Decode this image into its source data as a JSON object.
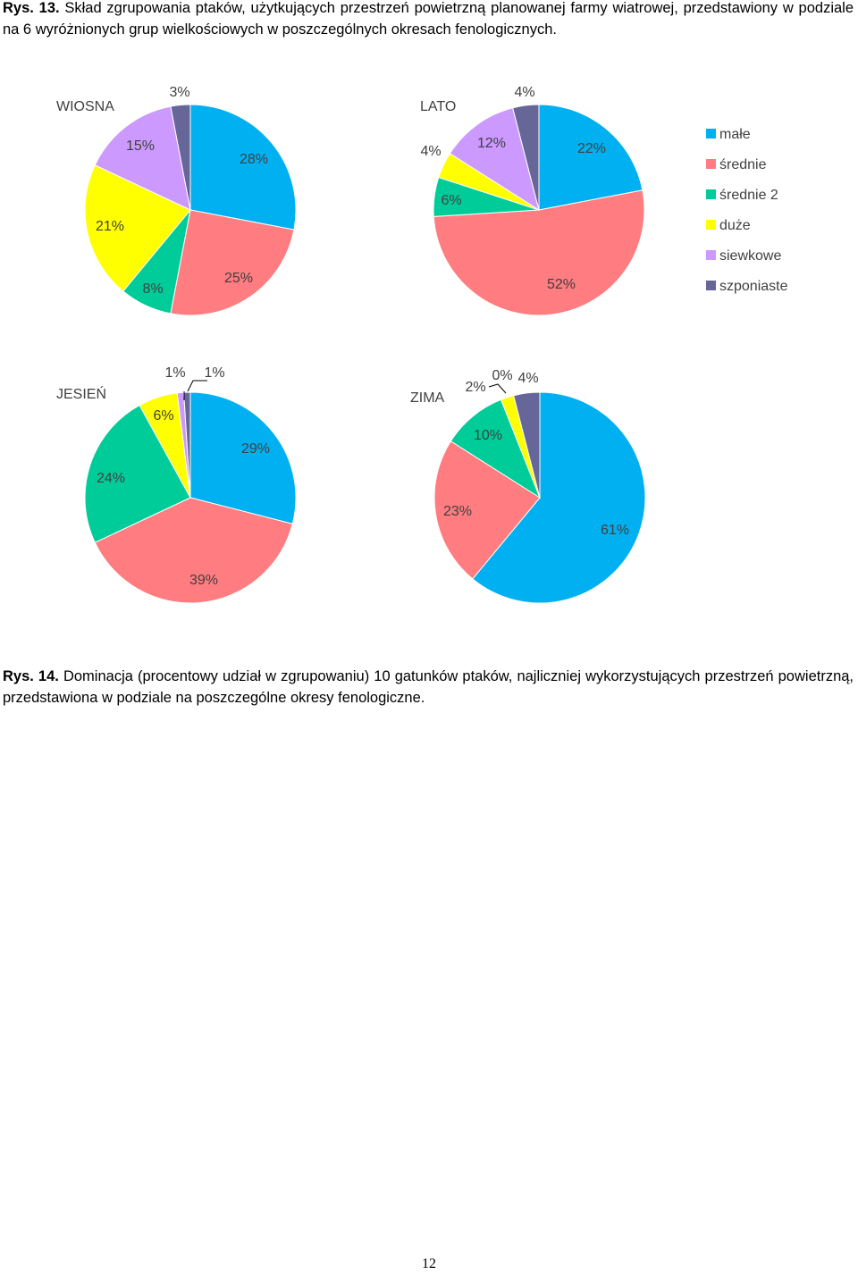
{
  "figure13": {
    "label": "Rys. 13.",
    "caption": "Skład zgrupowania ptaków, użytkujących przestrzeń powietrzną planowanej farmy wiatrowej, przedstawiony w podziale na 6 wyróżnionych grup wielkościowych w poszczególnych okresach fenologicznych."
  },
  "figure14": {
    "label": "Rys. 14.",
    "caption": "Dominacja (procentowy udział w zgrupowaniu) 10 gatunków ptaków, najliczniej wykorzystujących przestrzeń powietrzną, przedstawiona w podziale na poszczególne okresy fenologiczne."
  },
  "page_number": "12",
  "chart_data": [
    {
      "type": "pie",
      "title": "WIOSNA",
      "categories": [
        "małe",
        "średnie",
        "średnie 2",
        "duże",
        "siewkowe",
        "szponiaste"
      ],
      "values": [
        28,
        25,
        8,
        21,
        15,
        3
      ],
      "labels": [
        "28%",
        "25%",
        "8%",
        "21%",
        "15%",
        "3%"
      ]
    },
    {
      "type": "pie",
      "title": "LATO",
      "categories": [
        "małe",
        "średnie",
        "średnie 2",
        "duże",
        "siewkowe",
        "szponiaste"
      ],
      "values": [
        22,
        52,
        6,
        4,
        12,
        4
      ],
      "labels": [
        "22%",
        "52%",
        "6%",
        "4%",
        "12%",
        "4%"
      ]
    },
    {
      "type": "pie",
      "title": "JESIEŃ",
      "categories": [
        "małe",
        "średnie",
        "średnie 2",
        "duże",
        "siewkowe",
        "szponiaste"
      ],
      "values": [
        29,
        39,
        24,
        6,
        1,
        1
      ],
      "labels": [
        "29%",
        "39%",
        "24%",
        "6%",
        "1%",
        "1%"
      ]
    },
    {
      "type": "pie",
      "title": "ZIMA",
      "categories": [
        "małe",
        "średnie",
        "średnie 2",
        "duże",
        "siewkowe",
        "szponiaste"
      ],
      "values": [
        61,
        23,
        10,
        2,
        0,
        4
      ],
      "labels": [
        "61%",
        "23%",
        "10%",
        "2%",
        "0%",
        "4%"
      ]
    }
  ],
  "legend": {
    "placement": "right",
    "items": [
      {
        "label": "małe",
        "color": "#00B0F0"
      },
      {
        "label": "średnie",
        "color": "#FF7C80"
      },
      {
        "label": "średnie 2",
        "color": "#00CC99"
      },
      {
        "label": "duże",
        "color": "#FFFF00"
      },
      {
        "label": "siewkowe",
        "color": "#CC99FF"
      },
      {
        "label": "szponiaste",
        "color": "#666699"
      }
    ]
  }
}
